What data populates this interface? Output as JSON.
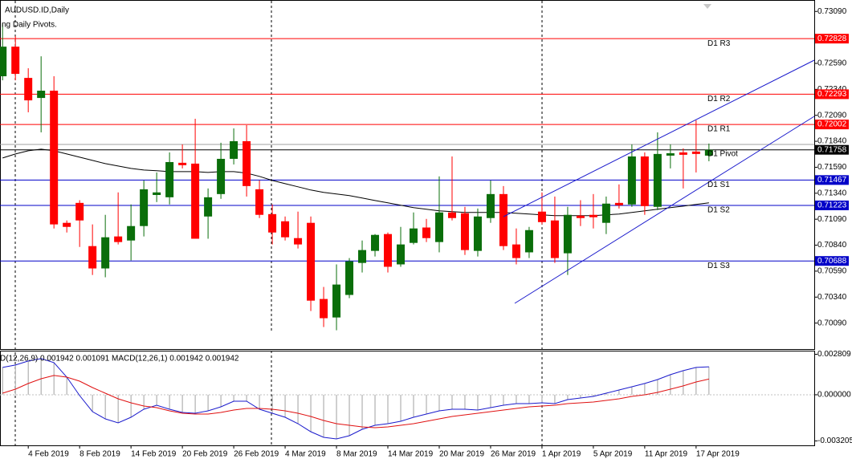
{
  "chart_data": [
    {
      "type": "candlestick",
      "title": "AUDUSD.ID,Daily",
      "subtitle": "ng Daily Pivots.",
      "xlim": [
        -0.2,
        63.2
      ],
      "xticks": [
        {
          "value": 2,
          "label": "4 Feb 2019"
        },
        {
          "value": 6,
          "label": "8 Feb 2019"
        },
        {
          "value": 10,
          "label": "14 Feb 2019"
        },
        {
          "value": 14,
          "label": "20 Feb 2019"
        },
        {
          "value": 18,
          "label": "26 Feb 2019"
        },
        {
          "value": 22,
          "label": "4 Mar 2019"
        },
        {
          "value": 26,
          "label": "8 Mar 2019"
        },
        {
          "value": 30,
          "label": "14 Mar 2019"
        },
        {
          "value": 34,
          "label": "20 Mar 2019"
        },
        {
          "value": 38,
          "label": "26 Mar 2019"
        },
        {
          "value": 42,
          "label": "1 Apr 2019"
        },
        {
          "value": 46,
          "label": "5 Apr 2019"
        },
        {
          "value": 50,
          "label": "11 Apr 2019"
        },
        {
          "value": 54,
          "label": "17 Apr 2019"
        }
      ],
      "ylim": [
        0.6984,
        0.732
      ],
      "yticks": [
        {
          "value": 0.7009,
          "label": "0.70090"
        },
        {
          "value": 0.7034,
          "label": "0.70340"
        },
        {
          "value": 0.7059,
          "label": "0.70590"
        },
        {
          "value": 0.7084,
          "label": "0.70840"
        },
        {
          "value": 0.7109,
          "label": "0.71090"
        },
        {
          "value": 0.7134,
          "label": "0.71340"
        },
        {
          "value": 0.7159,
          "label": "0.71590"
        },
        {
          "value": 0.7184,
          "label": "0.71840"
        },
        {
          "value": 0.7209,
          "label": "0.72090"
        },
        {
          "value": 0.7234,
          "label": "0.72340"
        },
        {
          "value": 0.7259,
          "label": "0.72590"
        },
        {
          "value": 0.7309,
          "label": "0.73090"
        }
      ],
      "up_color": "#0a6e0a",
      "down_color": "#ff0000",
      "open": [
        0.72466,
        0.72751,
        0.7245,
        0.72257,
        0.72327,
        0.71055,
        0.71247,
        0.70831,
        0.70616,
        0.70924,
        0.70885,
        0.71024,
        0.71323,
        0.71301,
        0.71633,
        0.71625,
        0.71116,
        0.71332,
        0.71671,
        0.71841,
        0.71378,
        0.71139,
        0.7107,
        0.70908,
        0.71055,
        0.70322,
        0.70144,
        0.70361,
        0.70669,
        0.70785,
        0.70947,
        0.70655,
        0.70862,
        0.7101,
        0.7087,
        0.71155,
        0.71147,
        0.70785,
        0.71101,
        0.71332,
        0.70847,
        0.70771,
        0.71163,
        0.71078,
        0.70762,
        0.71124,
        0.71132,
        0.71055,
        0.71247,
        0.71232,
        0.71694,
        0.71209,
        0.71702,
        0.71733,
        0.71741,
        0.71702
      ],
      "high": [
        0.72967,
        0.72851,
        0.72543,
        0.72658,
        0.72466,
        0.71078,
        0.71273,
        0.7104,
        0.71132,
        0.71348,
        0.71232,
        0.71463,
        0.7154,
        0.71733,
        0.7181,
        0.72057,
        0.71386,
        0.71826,
        0.71964,
        0.71995,
        0.71463,
        0.71232,
        0.71116,
        0.71163,
        0.71116,
        0.70438,
        0.70655,
        0.70716,
        0.70885,
        0.70947,
        0.70962,
        0.71016,
        0.71155,
        0.71093,
        0.71502,
        0.71694,
        0.71209,
        0.71193,
        0.71463,
        0.71409,
        0.71001,
        0.71016,
        0.71348,
        0.71308,
        0.71209,
        0.71273,
        0.71332,
        0.71308,
        0.71425,
        0.7181,
        0.71733,
        0.71926,
        0.7181,
        0.71772,
        0.72042,
        0.71818
      ],
      "low": [
        0.72427,
        0.72427,
        0.72119,
        0.71926,
        0.71001,
        0.70962,
        0.70823,
        0.70553,
        0.70531,
        0.70847,
        0.70693,
        0.70924,
        0.71255,
        0.71232,
        0.71579,
        0.70902,
        0.70902,
        0.71286,
        0.71617,
        0.71308,
        0.71101,
        0.70847,
        0.70885,
        0.70808,
        0.70206,
        0.70052,
        0.70021,
        0.7033,
        0.70577,
        0.70731,
        0.70577,
        0.70632,
        0.70847,
        0.7087,
        0.70771,
        0.71078,
        0.70746,
        0.70731,
        0.71055,
        0.70793,
        0.70655,
        0.70716,
        0.7104,
        0.70669,
        0.70553,
        0.71024,
        0.71001,
        0.70947,
        0.71193,
        0.71209,
        0.71132,
        0.71178,
        0.71579,
        0.71386,
        0.7154,
        0.71648
      ],
      "close": [
        0.72751,
        0.72489,
        0.72234,
        0.72327,
        0.7104,
        0.71016,
        0.71078,
        0.70616,
        0.70916,
        0.7087,
        0.71024,
        0.71378,
        0.71348,
        0.7164,
        0.7161,
        0.70902,
        0.71301,
        0.71671,
        0.71841,
        0.71409,
        0.71132,
        0.70962,
        0.70916,
        0.70847,
        0.70306,
        0.70137,
        0.70461,
        0.70685,
        0.70793,
        0.70939,
        0.70632,
        0.70847,
        0.71001,
        0.70908,
        0.71155,
        0.71101,
        0.70793,
        0.71116,
        0.71332,
        0.70831,
        0.70716,
        0.70985,
        0.71062,
        0.70716,
        0.71132,
        0.71101,
        0.71109,
        0.7124,
        0.71224,
        0.71694,
        0.71216,
        0.71718,
        0.71725,
        0.7171,
        0.71718,
        0.71758
      ],
      "moving_average": {
        "color": "#000000",
        "values": [
          0.71679,
          0.71718,
          0.71749,
          0.71764,
          0.71749,
          0.71718,
          0.71687,
          0.71656,
          0.71625,
          0.71602,
          0.71579,
          0.71563,
          0.71556,
          0.71548,
          0.71548,
          0.71548,
          0.7154,
          0.71548,
          0.71548,
          0.71533,
          0.71502,
          0.71463,
          0.71432,
          0.71402,
          0.71371,
          0.71348,
          0.71332,
          0.71317,
          0.71294,
          0.7127,
          0.71247,
          0.71224,
          0.71201,
          0.71186,
          0.7117,
          0.71163,
          0.71155,
          0.71155,
          0.71155,
          0.71155,
          0.71147,
          0.71139,
          0.71132,
          0.71124,
          0.71124,
          0.71124,
          0.71124,
          0.71132,
          0.71139,
          0.71155,
          0.7117,
          0.71186,
          0.71201,
          0.71216,
          0.71232,
          0.71247
        ]
      },
      "levels": [
        {
          "label": "D1 R3",
          "value": 0.72828,
          "color": "#ff0000"
        },
        {
          "label": "D1 R2",
          "value": 0.72293,
          "color": "#ff0000"
        },
        {
          "label": "D1 R1",
          "value": 0.72002,
          "color": "#ff0000"
        },
        {
          "label": "D1 S1",
          "value": 0.71467,
          "color": "#0000c8"
        },
        {
          "label": "D1 S2",
          "value": 0.71223,
          "color": "#0000c8"
        },
        {
          "label": "D1 S3",
          "value": 0.70688,
          "color": "#0000c8"
        }
      ],
      "pivot": {
        "label": "D1 Pivot",
        "value": 0.7181,
        "color": "#a0a0a0"
      },
      "last_price": 0.71758
    },
    {
      "type": "macd",
      "title": "D(12,26,9) 0.001942 0.001091 MACD(12,26,1) 0.001942 0.001942",
      "xlim": [
        -0.2,
        63.2
      ],
      "ylim": [
        -0.00351,
        0.00306
      ],
      "yticks": [
        0.002809,
        {
          "value": 0,
          "label": "0.000000"
        },
        -0.003205
      ],
      "histogram_color": "#a0a0a0",
      "series": [
        {
          "color": "#1a1acc",
          "values": [
            0.001894,
            0.002061,
            0.002339,
            0.002507,
            0.002228,
            0.001225,
            -5.6e-05,
            -0.00117,
            -0.001671,
            -0.00195,
            -0.00156,
            -0.001003,
            -0.000725,
            -0.001003,
            -0.001226,
            -0.001281,
            -0.001114,
            -0.000836,
            -0.000446,
            -0.000446,
            -0.001003,
            -0.001281,
            -0.00156,
            -0.002005,
            -0.002562,
            -0.002952,
            -0.003063,
            -0.002841,
            -0.002395,
            -0.002117,
            -0.002005,
            -0.001838,
            -0.00156,
            -0.001337,
            -0.001114,
            -0.001003,
            -0.001003,
            -0.001058,
            -0.000891,
            -0.000724,
            -0.000613,
            -0.000613,
            -0.000557,
            -0.000613,
            -0.000334,
            -0.000223,
            -0.000111,
            0.000111,
            0.000334,
            0.000557,
            0.00078,
            0.001058,
            0.001393,
            0.001671,
            0.001894,
            0.001942
          ]
        },
        {
          "color": "#e01010",
          "values": [
            0.000111,
            0.00039,
            0.00078,
            0.001114,
            0.001337,
            0.001225,
            0.000947,
            0.000501,
            0.000111,
            -0.000279,
            -0.000557,
            -0.00078,
            -0.000891,
            -0.001114,
            -0.001281,
            -0.001337,
            -0.001337,
            -0.001226,
            -0.001058,
            -0.000947,
            -0.000947,
            -0.001003,
            -0.001114,
            -0.001281,
            -0.001504,
            -0.001782,
            -0.002005,
            -0.002117,
            -0.002228,
            -0.002284,
            -0.002228,
            -0.002117,
            -0.002005,
            -0.001838,
            -0.001671,
            -0.001504,
            -0.001393,
            -0.001281,
            -0.00117,
            -0.001058,
            -0.000947,
            -0.000836,
            -0.00078,
            -0.000724,
            -0.000613,
            -0.000557,
            -0.000501,
            -0.00039,
            -0.000279,
            -0.000111,
            0,
            0.000167,
            0.00039,
            0.000613,
            0.000891,
            0.001091
          ]
        }
      ]
    }
  ]
}
